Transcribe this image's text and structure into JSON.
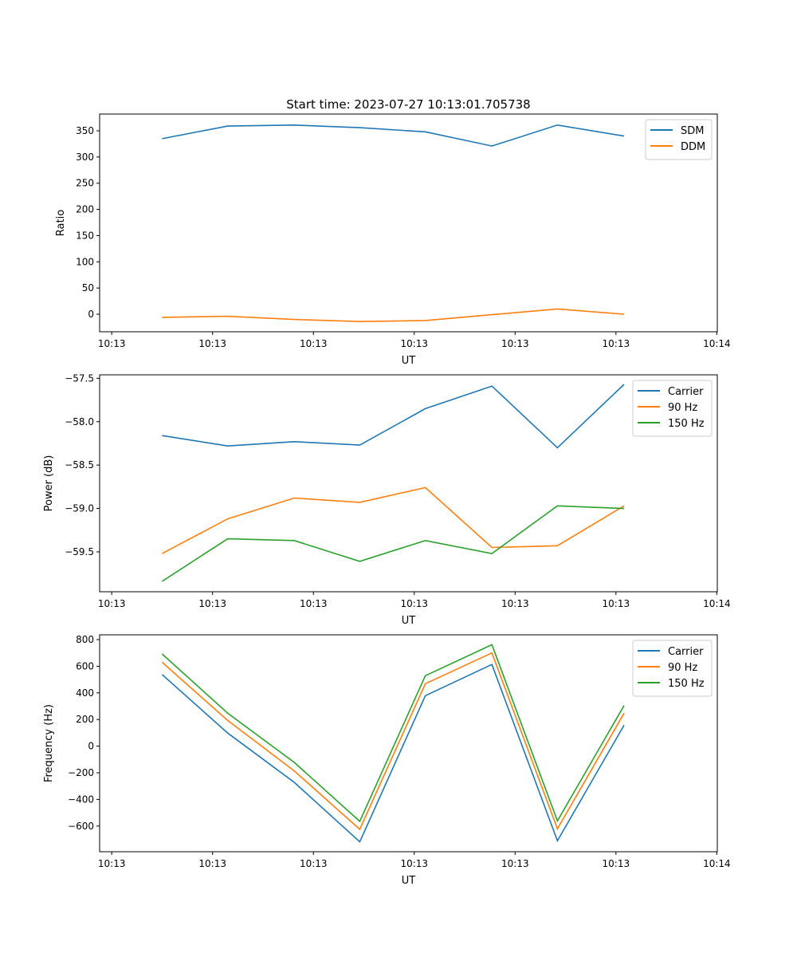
{
  "title": "Start time: 2023-07-27 10:13:01.705738",
  "chart_data": [
    {
      "type": "line",
      "title": "Start time: 2023-07-27 10:13:01.705738",
      "xlabel": "UT",
      "ylabel": "Ratio",
      "x": [
        5.0,
        11.5,
        18.1,
        24.6,
        31.1,
        37.7,
        44.2,
        50.8
      ],
      "x_unit": "seconds after 10:13:00",
      "xlim": [
        -1.2,
        60.05
      ],
      "xticks": [
        0,
        10,
        20,
        30,
        40,
        50,
        60
      ],
      "xtick_labels": [
        "10:13",
        "10:13",
        "10:13",
        "10:13",
        "10:13",
        "10:13",
        "10:14"
      ],
      "ylim": [
        -33.5,
        382
      ],
      "yticks": [
        0,
        50,
        100,
        150,
        200,
        250,
        300,
        350
      ],
      "ytick_labels": [
        "0",
        "50",
        "100",
        "150",
        "200",
        "250",
        "300",
        "350"
      ],
      "legend": "top-right",
      "grid": false,
      "series": [
        {
          "name": "SDM",
          "color": "#1f77b4",
          "values": [
            335,
            359,
            361,
            356,
            348,
            321,
            361,
            340
          ]
        },
        {
          "name": "DDM",
          "color": "#ff7f0e",
          "values": [
            -6,
            -4,
            -10,
            -14,
            -12,
            -1,
            10,
            0
          ]
        }
      ]
    },
    {
      "type": "line",
      "title": "",
      "xlabel": "UT",
      "ylabel": "Power (dB)",
      "x": [
        5.0,
        11.5,
        18.1,
        24.6,
        31.1,
        37.7,
        44.2,
        50.8
      ],
      "x_unit": "seconds after 10:13:00",
      "xlim": [
        -1.2,
        60.05
      ],
      "xticks": [
        0,
        10,
        20,
        30,
        40,
        50,
        60
      ],
      "xtick_labels": [
        "10:13",
        "10:13",
        "10:13",
        "10:13",
        "10:13",
        "10:13",
        "10:14"
      ],
      "ylim": [
        -59.96,
        -57.46
      ],
      "yticks": [
        -59.5,
        -59.0,
        -58.5,
        -58.0,
        -57.5
      ],
      "ytick_labels": [
        "−59.5",
        "−59.0",
        "−58.5",
        "−58.0",
        "−57.5"
      ],
      "legend": "top-right",
      "grid": false,
      "series": [
        {
          "name": "Carrier",
          "color": "#1f77b4",
          "values": [
            -58.16,
            -58.28,
            -58.23,
            -58.27,
            -57.85,
            -57.59,
            -58.3,
            -57.57
          ]
        },
        {
          "name": "90 Hz",
          "color": "#ff7f0e",
          "values": [
            -59.52,
            -59.12,
            -58.88,
            -58.93,
            -58.76,
            -59.45,
            -59.43,
            -58.97
          ]
        },
        {
          "name": "150 Hz",
          "color": "#2ca02c",
          "values": [
            -59.84,
            -59.35,
            -59.37,
            -59.61,
            -59.37,
            -59.52,
            -58.97,
            -59.0
          ]
        }
      ]
    },
    {
      "type": "line",
      "title": "",
      "xlabel": "UT",
      "ylabel": "Frequency (Hz)",
      "x": [
        5.0,
        11.5,
        18.1,
        24.6,
        31.1,
        37.7,
        44.2,
        50.8
      ],
      "x_unit": "seconds after 10:13:00",
      "xlim": [
        -1.2,
        60.05
      ],
      "xticks": [
        0,
        10,
        20,
        30,
        40,
        50,
        60
      ],
      "xtick_labels": [
        "10:13",
        "10:13",
        "10:13",
        "10:13",
        "10:13",
        "10:13",
        "10:14"
      ],
      "ylim": [
        -793,
        836
      ],
      "yticks": [
        -600,
        -400,
        -200,
        0,
        200,
        400,
        600,
        800
      ],
      "ytick_labels": [
        "−600",
        "−400",
        "−200",
        "0",
        "200",
        "400",
        "600",
        "800"
      ],
      "legend": "top-right",
      "grid": false,
      "series": [
        {
          "name": "Carrier",
          "color": "#1f77b4",
          "values": [
            538,
            98,
            -272,
            -719,
            379,
            613,
            -711,
            157
          ]
        },
        {
          "name": "90 Hz",
          "color": "#ff7f0e",
          "values": [
            630,
            193,
            -186,
            -625,
            469,
            700,
            -621,
            247
          ]
        },
        {
          "name": "150 Hz",
          "color": "#2ca02c",
          "values": [
            692,
            247,
            -122,
            -565,
            529,
            762,
            -561,
            305
          ]
        }
      ]
    }
  ]
}
